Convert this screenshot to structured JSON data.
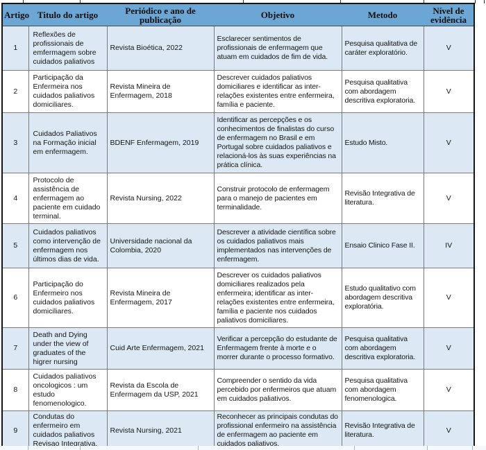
{
  "table": {
    "columns": [
      {
        "key": "artigo",
        "label": "Artigo"
      },
      {
        "key": "titulo",
        "label": "Titulo do artigo"
      },
      {
        "key": "periodico",
        "label": "Periódico e ano de publicação"
      },
      {
        "key": "objetivo",
        "label": "Objetivo"
      },
      {
        "key": "metodo",
        "label": "Metodo"
      },
      {
        "key": "nivel",
        "label": "Nível de evidência"
      }
    ],
    "rows": [
      {
        "artigo": "1",
        "titulo": "Reflexões de profissionais de emfermagem sobre cuidados paliativos",
        "periodico": "Revista Bioética, 2022",
        "objetivo": "Esclarecer sentimentos de profissionais de enfermagem que atuam em cuidados de fim de vida.",
        "metodo": "Pesquisa qualitativa de caráter exploratório.",
        "nivel": "V"
      },
      {
        "artigo": "2",
        "titulo": "Participação da Enfermeira nos cuidados paliativos domiciliares.",
        "periodico": "Revista Mineira de Enfermagem, 2018",
        "objetivo": "Descrever cuidados paliativos domiciliares e identificar as inter-relações existentes entre enfermeira, família e paciente.",
        "metodo": "Pesquisa qualitativa com abordagem descritiva exploratoria.",
        "nivel": "V"
      },
      {
        "artigo": "3",
        "titulo": "Cuidados Paliativos na Formação inicial em enfermagem.",
        "periodico": "BDENF Enfermagem, 2019",
        "objetivo": "Identificar as percepções e os conhecimentos de finalistas do curso de enfermagem no Brasil e em Portugal sobre cuidados paliativos e relacioná-los às suas experiências na prática clínica.",
        "metodo": "Estudo Misto.",
        "nivel": "V"
      },
      {
        "artigo": "4",
        "titulo": "Protocolo de assistência de enfermagem ao paciente em cuidado terminal.",
        "periodico": "Revista Nursing, 2022",
        "objetivo": "Construir protocolo de enfermagem para o manejo de pacientes em terminalidade.",
        "metodo": "Revisão Integrativa de literatura.",
        "nivel": "V"
      },
      {
        "artigo": "5",
        "titulo": "Cuidados paliativos como intervenção de enfermagem nos últimos dias de vida.",
        "periodico": "Universidade nacional da Colombia,  2020",
        "objetivo": "Descrever a atividade científica sobre os cuidados paliativos mais implementados nas intervenções de enfermagem.",
        "metodo": "Ensaio Clinico Fase II.",
        "nivel": "IV"
      },
      {
        "artigo": "6",
        "titulo": "Participação do Enfermeiro nos cuidados paliativos domiciliares.",
        "periodico": "Revista Mineira de Enfermagem, 2017",
        "objetivo": "Descrever os cuidados paliativos domiciliares realizados pela enfermeira; identificar as inter-relações existentes entre enfermeira, família e paciente nos cuidados paliativos domiciliares.",
        "metodo": "Estudo qualitativo com abordagem descritiva exploratória.",
        "nivel": "V"
      },
      {
        "artigo": "7",
        "titulo": "Death and Dying under the view of graduates of the higrer nursing",
        "periodico": "Cuid Arte Enfermagem, 2021",
        "objetivo": "Verificar a percepção do estudante de Enfermagem frente à morte e o morrer durante o processo formativo.",
        "metodo": "Pesquisa qualitativa com abordagem descritiva exploratoria.",
        "nivel": "V"
      },
      {
        "artigo": "8",
        "titulo": "Cuidados paliativos oncologicos : um estudo fenomenologico.",
        "periodico": "Revista da Escola de Enfermagem da USP, 2021",
        "objetivo": "Compreender o sentido da vida percebido por enfermeiros que atuam em cuidados paliativos.",
        "metodo": "Pesquisa qualitativa com abordagem fenomenologica.",
        "nivel": "V"
      },
      {
        "artigo": "9",
        "titulo": "Condutas do enfermeiro em cuidados paliativos Revisao Integrativa.",
        "periodico": "Revista  Nursing, 2021",
        "objetivo": "Reconhecer as principais condutas do profissional enfermeiro na assistência de enfermagem ao paciente em cuidados paliativos.",
        "metodo": "Revisão Integrativa de literatura.",
        "nivel": "V"
      }
    ],
    "colors": {
      "header_bg": "#6CA6D4",
      "row_alt_bg": "#DCE9F5",
      "row_bg": "#FFFFFF",
      "cell_border": "#7A7A7A",
      "outer_border": "#141414"
    }
  }
}
